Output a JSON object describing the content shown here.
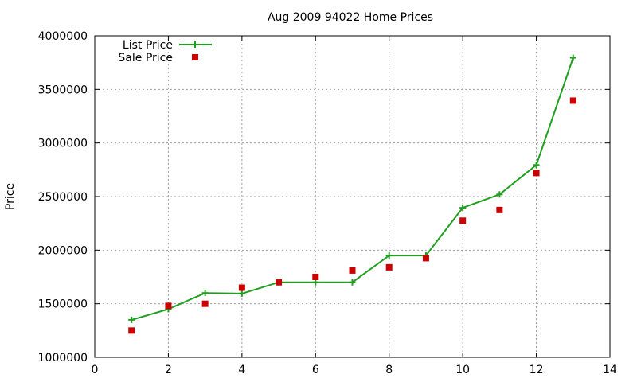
{
  "chart_data": {
    "type": "line",
    "title": "Aug 2009 94022 Home Prices",
    "xlabel": "",
    "ylabel": "Price",
    "xlim": [
      0,
      14
    ],
    "ylim": [
      1000000,
      4000000
    ],
    "x_ticks": [
      "0",
      "2",
      "4",
      "6",
      "8",
      "10",
      "12",
      "14"
    ],
    "y_ticks": [
      "1000000",
      "1500000",
      "2000000",
      "2500000",
      "3000000",
      "3500000",
      "4000000"
    ],
    "grid": true,
    "legend_position": "top-left",
    "series": [
      {
        "name": "List Price",
        "style": "line+cross",
        "color": "#1f9e1f",
        "x": [
          1,
          2,
          3,
          4,
          5,
          6,
          7,
          8,
          9,
          10,
          11,
          12,
          13
        ],
        "y": [
          1350000,
          1450000,
          1600000,
          1595000,
          1700000,
          1700000,
          1700000,
          1950000,
          1950000,
          2395000,
          2520000,
          2795000,
          3795000
        ]
      },
      {
        "name": "Sale Price",
        "style": "square",
        "color": "#cc0000",
        "x": [
          1,
          2,
          3,
          4,
          5,
          6,
          7,
          8,
          9,
          10,
          11,
          12,
          13
        ],
        "y": [
          1250000,
          1480000,
          1500000,
          1650000,
          1700000,
          1750000,
          1810000,
          1840000,
          1925000,
          2275000,
          2375000,
          2720000,
          3395000
        ]
      }
    ]
  }
}
